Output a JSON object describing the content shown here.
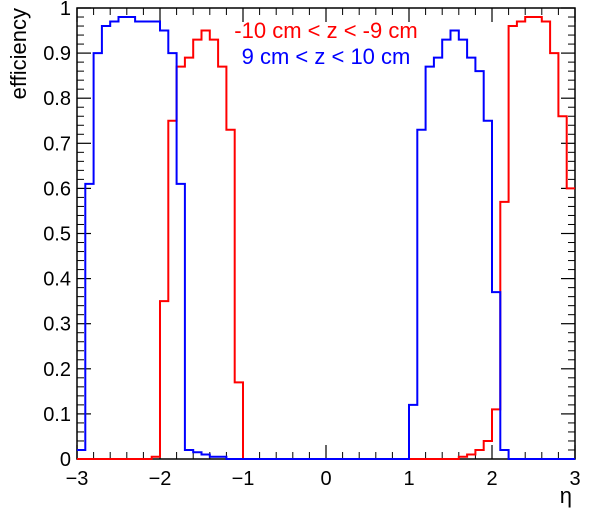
{
  "chart_data": {
    "type": "line",
    "xlabel": "η",
    "ylabel": "efficiency",
    "xlim": [
      -3,
      3
    ],
    "ylim": [
      0,
      1
    ],
    "grid": false,
    "legend_position": "top-center",
    "bin_width": 0.1,
    "x_bin_low_edges": [
      -3.0,
      -2.9,
      -2.8,
      -2.7,
      -2.6,
      -2.5,
      -2.4,
      -2.3,
      -2.2,
      -2.1,
      -2.0,
      -1.9,
      -1.8,
      -1.7,
      -1.6,
      -1.5,
      -1.4,
      -1.3,
      -1.2,
      -1.1,
      -1.0,
      -0.9,
      -0.8,
      -0.7,
      -0.6,
      -0.5,
      -0.4,
      -0.3,
      -0.2,
      -0.1,
      0.0,
      0.1,
      0.2,
      0.3,
      0.4,
      0.5,
      0.6,
      0.7,
      0.8,
      0.9,
      1.0,
      1.1,
      1.2,
      1.3,
      1.4,
      1.5,
      1.6,
      1.7,
      1.8,
      1.9,
      2.0,
      2.1,
      2.2,
      2.3,
      2.4,
      2.5,
      2.6,
      2.7,
      2.8,
      2.9
    ],
    "xticks": [
      -3,
      -2,
      -1,
      0,
      1,
      2,
      3
    ],
    "xtick_labels": [
      "−3",
      "−2",
      "−1",
      "0",
      "1",
      "2",
      "3"
    ],
    "yticks": [
      0,
      0.1,
      0.2,
      0.3,
      0.4,
      0.5,
      0.6,
      0.7,
      0.8,
      0.9,
      1
    ],
    "ytick_labels": [
      "0",
      "0.1",
      "0.2",
      "0.3",
      "0.4",
      "0.5",
      "0.6",
      "0.7",
      "0.8",
      "0.9",
      "1"
    ],
    "series": [
      {
        "name": "-10 cm < z < -9 cm",
        "color": "#ff0000",
        "values": [
          0,
          0,
          0,
          0,
          0,
          0,
          0,
          0,
          0,
          0.005,
          0.35,
          0.75,
          0.87,
          0.89,
          0.93,
          0.95,
          0.93,
          0.87,
          0.73,
          0.17,
          0,
          0,
          0,
          0,
          0,
          0,
          0,
          0,
          0,
          0,
          0,
          0,
          0,
          0,
          0,
          0,
          0,
          0,
          0,
          0,
          0,
          0,
          0,
          0,
          0,
          0,
          0.005,
          0.01,
          0.02,
          0.04,
          0.11,
          0.57,
          0.96,
          0.97,
          0.98,
          0.98,
          0.97,
          0.9,
          0.76,
          0.6
        ]
      },
      {
        "name": "9 cm < z < 10 cm",
        "color": "#0000ff",
        "values": [
          0.02,
          0.61,
          0.9,
          0.96,
          0.97,
          0.98,
          0.98,
          0.97,
          0.97,
          0.97,
          0.95,
          0.9,
          0.61,
          0.02,
          0.015,
          0.01,
          0.005,
          0.005,
          0,
          0,
          0,
          0,
          0,
          0,
          0,
          0,
          0,
          0,
          0,
          0,
          0,
          0,
          0,
          0,
          0,
          0,
          0,
          0,
          0,
          0,
          0.12,
          0.73,
          0.87,
          0.89,
          0.93,
          0.95,
          0.93,
          0.89,
          0.86,
          0.75,
          0.37,
          0.02,
          0,
          0,
          0,
          0,
          0,
          0,
          0,
          0
        ]
      }
    ]
  }
}
